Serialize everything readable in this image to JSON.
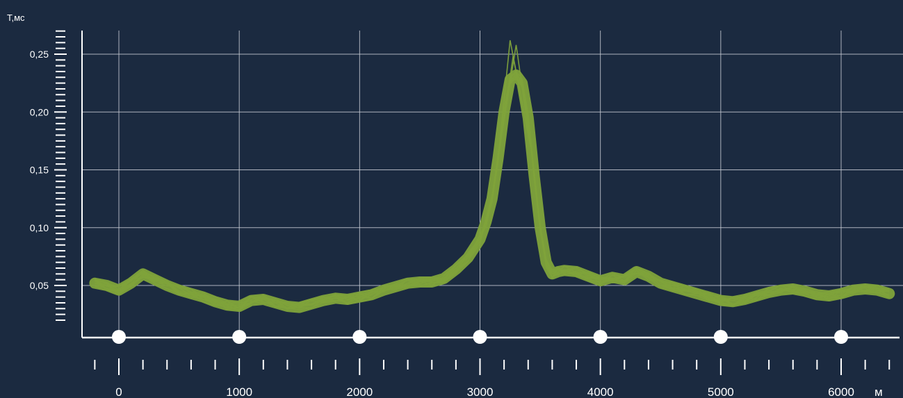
{
  "chart_data": {
    "type": "line",
    "title": "",
    "ylabel": "T,мс",
    "xlabel": "м",
    "xlim": [
      0,
      6000
    ],
    "ylim": [
      0.05,
      0.25
    ],
    "x_ticks": [
      0,
      1000,
      2000,
      3000,
      4000,
      5000,
      6000
    ],
    "x_tick_labels": [
      "0",
      "1000",
      "2000",
      "3000",
      "4000",
      "5000",
      "6000"
    ],
    "y_ticks": [
      0.05,
      0.1,
      0.15,
      0.2,
      0.25
    ],
    "y_tick_labels": [
      "0,05",
      "0,10",
      "0,15",
      "0,20",
      "0,25"
    ],
    "markers_x": [
      0,
      1000,
      2000,
      3000,
      4000,
      5000,
      6000
    ],
    "grid": true,
    "series_color": "#7fa33b",
    "background": "#1b2a40",
    "grid_color": "#c8ccd4",
    "series": [
      {
        "x": [
          -200,
          -100,
          0,
          100,
          200,
          300,
          400,
          500,
          600,
          700,
          800,
          900,
          1000,
          1100,
          1200,
          1300,
          1400,
          1500,
          1600,
          1700,
          1800,
          1900,
          2000,
          2100,
          2200,
          2300,
          2400,
          2500,
          2600,
          2700,
          2800,
          2900,
          3000,
          3050,
          3100,
          3150,
          3200,
          3250,
          3300,
          3350,
          3400,
          3450,
          3500,
          3550,
          3600,
          3650,
          3700,
          3800,
          3900,
          4000,
          4100,
          4200,
          4300,
          4400,
          4500,
          4600,
          4700,
          4800,
          4900,
          5000,
          5100,
          5200,
          5300,
          5400,
          5500,
          5600,
          5700,
          5800,
          5900,
          6000,
          6100,
          6200,
          6300,
          6400
        ],
        "y": [
          0.052,
          0.05,
          0.046,
          0.052,
          0.06,
          0.055,
          0.05,
          0.046,
          0.043,
          0.04,
          0.036,
          0.033,
          0.032,
          0.037,
          0.038,
          0.035,
          0.032,
          0.031,
          0.034,
          0.037,
          0.039,
          0.038,
          0.04,
          0.042,
          0.046,
          0.049,
          0.052,
          0.053,
          0.053,
          0.056,
          0.064,
          0.074,
          0.09,
          0.105,
          0.125,
          0.16,
          0.2,
          0.228,
          0.232,
          0.225,
          0.195,
          0.145,
          0.1,
          0.07,
          0.06,
          0.062,
          0.063,
          0.062,
          0.058,
          0.054,
          0.057,
          0.055,
          0.062,
          0.058,
          0.052,
          0.049,
          0.046,
          0.043,
          0.04,
          0.037,
          0.036,
          0.038,
          0.041,
          0.044,
          0.046,
          0.047,
          0.045,
          0.042,
          0.041,
          0.043,
          0.046,
          0.047,
          0.046,
          0.043
        ]
      }
    ]
  }
}
